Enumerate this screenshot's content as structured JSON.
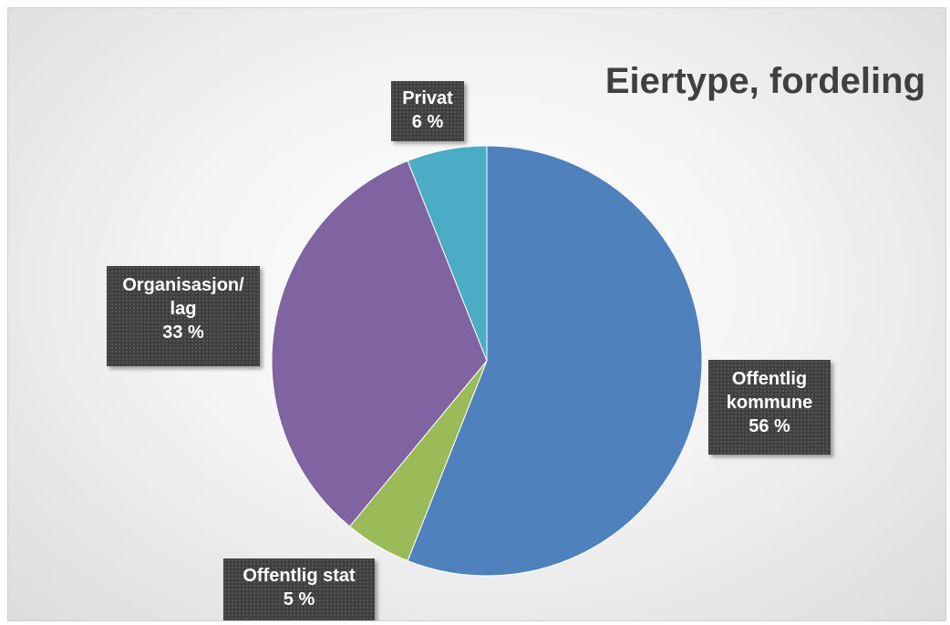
{
  "chart_data": {
    "type": "pie",
    "title": "Eiertype, fordeling",
    "slices": [
      {
        "label_lines": [
          "Offentlig",
          "kommune"
        ],
        "value": 56,
        "value_label": "56 %",
        "color": "#4f81bd"
      },
      {
        "label_lines": [
          "Offentlig stat"
        ],
        "value": 5,
        "value_label": "5 %",
        "color": "#9bbb59"
      },
      {
        "label_lines": [
          "Organisasjon/",
          "lag"
        ],
        "value": 33,
        "value_label": "33 %",
        "color": "#8064a2"
      },
      {
        "label_lines": [
          "Privat"
        ],
        "value": 6,
        "value_label": "6 %",
        "color": "#4bacc6"
      }
    ],
    "legend": "none",
    "start_angle": "12 o'clock, clockwise"
  }
}
